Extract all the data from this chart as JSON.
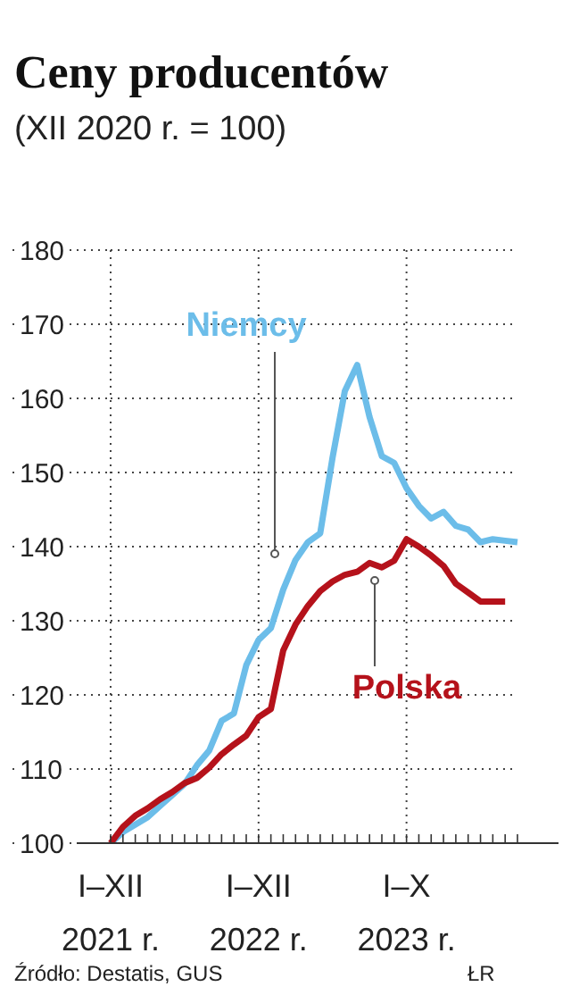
{
  "chart_data": {
    "type": "line",
    "title": "Ceny producentów",
    "subtitle": "(XII 2020 r. = 100)",
    "categories": [
      "I–XII 2021 r.",
      null,
      null,
      null,
      null,
      null,
      null,
      null,
      null,
      null,
      null,
      null,
      "I–XII 2022 r.",
      null,
      null,
      null,
      null,
      null,
      null,
      null,
      null,
      null,
      null,
      null,
      "I–X 2023 r.",
      null,
      null,
      null,
      null,
      null,
      null,
      null,
      null,
      null
    ],
    "series": [
      {
        "name": "Niemcy",
        "color": "#6cbde9",
        "values": [
          100,
          101.5,
          102.5,
          103.5,
          105,
          106.5,
          108,
          110.5,
          112.5,
          116.5,
          117.5,
          124,
          127.4,
          129,
          134.2,
          138.2,
          140.6,
          141.8,
          152,
          161,
          164.5,
          157.5,
          152.2,
          151.3,
          147.9,
          145.5,
          143.8,
          144.7,
          142.8,
          142.3,
          140.6,
          141,
          140.8,
          140.6
        ]
      },
      {
        "name": "Polska",
        "color": "#b5121b",
        "values": [
          100,
          102.2,
          103.7,
          104.7,
          105.9,
          106.9,
          108.1,
          108.8,
          110.2,
          112,
          113.3,
          114.5,
          117,
          118.1,
          126,
          129.5,
          132,
          134,
          135.3,
          136.2,
          136.6,
          137.8,
          137.2,
          138.1,
          141,
          140,
          138.8,
          137.4,
          135,
          133.8,
          132.6,
          132.6,
          132.6,
          null
        ]
      }
    ],
    "ylim": [
      100,
      180
    ],
    "yticks": [
      100,
      110,
      120,
      130,
      140,
      150,
      160,
      170,
      180
    ],
    "grid": true,
    "marker": "none",
    "line_style": "solid",
    "annotations": [
      "Źródło: Destatis, GUS",
      "ŁR"
    ]
  }
}
